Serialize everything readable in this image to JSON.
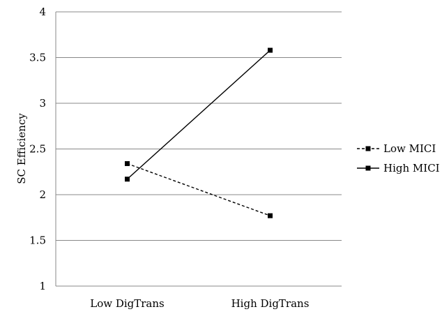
{
  "chart_data": {
    "type": "line",
    "title": "",
    "xlabel": "",
    "ylabel": "SC Efficiency",
    "categories": [
      "Low DigTrans",
      "High DigTrans"
    ],
    "ylim": [
      1,
      4
    ],
    "yticks": [
      "1",
      "1.5",
      "2",
      "2.5",
      "3",
      "3.5",
      "4"
    ],
    "grid": "horizontal",
    "legend_position": "right",
    "series": [
      {
        "name": "Low MICI",
        "values": [
          2.34,
          1.77
        ],
        "line_style": "dashed",
        "color": "#000000",
        "marker": "square"
      },
      {
        "name": "High MICI",
        "values": [
          2.17,
          3.58
        ],
        "line_style": "solid",
        "color": "#000000",
        "marker": "square"
      }
    ]
  }
}
